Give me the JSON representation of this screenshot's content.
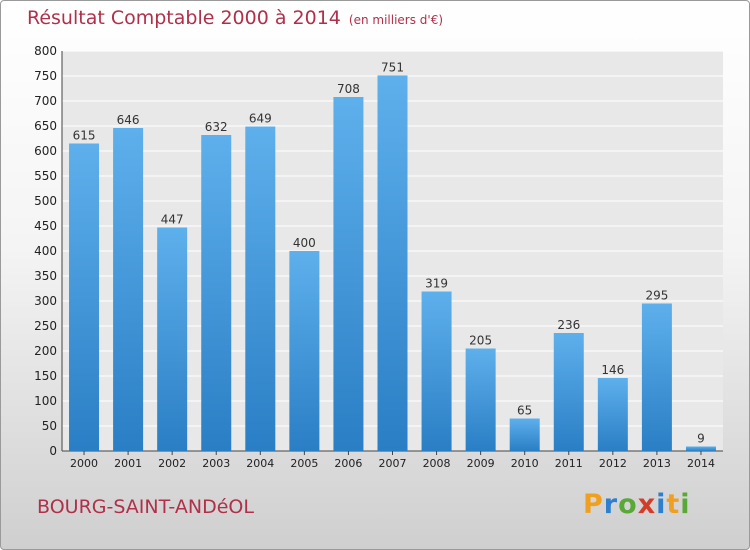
{
  "header": {
    "title": "Résultat Comptable 2000 à 2014",
    "subtitle": "(en milliers d'€)"
  },
  "footer": {
    "town": "BOURG-SAINT-ANDéOL",
    "logo": "Proxiti"
  },
  "colors": {
    "bar_light": "#5eb0ec",
    "bar_dark": "#2a7ec4",
    "title": "#b0304a"
  },
  "chart_data": {
    "type": "bar",
    "title": "Résultat Comptable 2000 à 2014",
    "subtitle": "(en milliers d'€)",
    "xlabel": "",
    "ylabel": "",
    "categories": [
      "2000",
      "2001",
      "2002",
      "2003",
      "2004",
      "2005",
      "2006",
      "2007",
      "2008",
      "2009",
      "2010",
      "2011",
      "2012",
      "2013",
      "2014"
    ],
    "values": [
      615,
      646,
      447,
      632,
      649,
      400,
      708,
      751,
      319,
      205,
      65,
      236,
      146,
      295,
      9
    ],
    "ylim": [
      0,
      800
    ],
    "yticks": [
      0,
      50,
      100,
      150,
      200,
      250,
      300,
      350,
      400,
      450,
      500,
      550,
      600,
      650,
      700,
      750,
      800
    ],
    "grid": true,
    "legend": "none"
  }
}
